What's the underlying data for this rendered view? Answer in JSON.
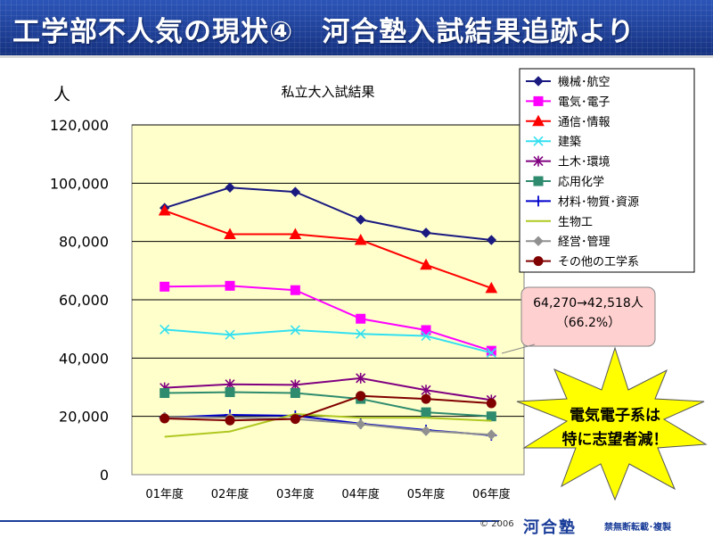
{
  "header": {
    "title": "工学部不人気の現状④　河合塾入試結果追跡より"
  },
  "footer": {
    "copyright": "© 2006",
    "logo": "河合塾",
    "notice": "禁無断転載･複製"
  },
  "chart_data": {
    "type": "line",
    "title": "私立大入試結果",
    "ylabel": "人",
    "xlabel": "",
    "categories": [
      "01年度",
      "02年度",
      "03年度",
      "04年度",
      "05年度",
      "06年度"
    ],
    "ylim": [
      0,
      120000
    ],
    "yticks": [
      0,
      20000,
      40000,
      60000,
      80000,
      100000,
      120000
    ],
    "ytick_labels": [
      "0",
      "20,000",
      "40,000",
      "60,000",
      "80,000",
      "100,000",
      "120,000"
    ],
    "grid": true,
    "legend_position": "right",
    "series": [
      {
        "name": "機械･航空",
        "color": "#1a1a80",
        "marker": "diamond",
        "values": [
          91500,
          98500,
          97000,
          87500,
          83000,
          80500
        ]
      },
      {
        "name": "電気･電子",
        "color": "#ff00ff",
        "marker": "square",
        "values": [
          64500,
          64800,
          63300,
          53500,
          49600,
          42500
        ]
      },
      {
        "name": "通信･情報",
        "color": "#ff0000",
        "marker": "triangle",
        "values": [
          90600,
          82500,
          82500,
          80500,
          72000,
          64000
        ]
      },
      {
        "name": "建築",
        "color": "#33e0f0",
        "marker": "x",
        "values": [
          49800,
          48000,
          49600,
          48300,
          47600,
          41800
        ]
      },
      {
        "name": "土木･環境",
        "color": "#800080",
        "marker": "star",
        "values": [
          29800,
          31000,
          30800,
          33100,
          29000,
          25600
        ]
      },
      {
        "name": "応用化学",
        "color": "#2e8b6e",
        "marker": "square",
        "values": [
          28000,
          28300,
          28000,
          26000,
          21400,
          20000
        ]
      },
      {
        "name": "材料･物質･資源",
        "color": "#0000cc",
        "marker": "plus",
        "values": [
          19600,
          20500,
          20200,
          17500,
          15300,
          13500
        ]
      },
      {
        "name": "生物工",
        "color": "#b0c820",
        "marker": "none",
        "values": [
          13000,
          14800,
          20800,
          19500,
          19500,
          18500
        ]
      },
      {
        "name": "経営･管理",
        "color": "#909090",
        "marker": "diamond",
        "values": [
          19800,
          19600,
          19100,
          17300,
          15000,
          13700
        ]
      },
      {
        "name": "その他の工学系",
        "color": "#800000",
        "marker": "circle",
        "values": [
          19300,
          18600,
          19100,
          27000,
          26000,
          24500
        ]
      }
    ],
    "annotations": {
      "callout_line1": "64,270→42,518人",
      "callout_line2": "（66.2%）",
      "burst_line1": "電気電子系は",
      "burst_line2": "特に志望者減！"
    }
  }
}
